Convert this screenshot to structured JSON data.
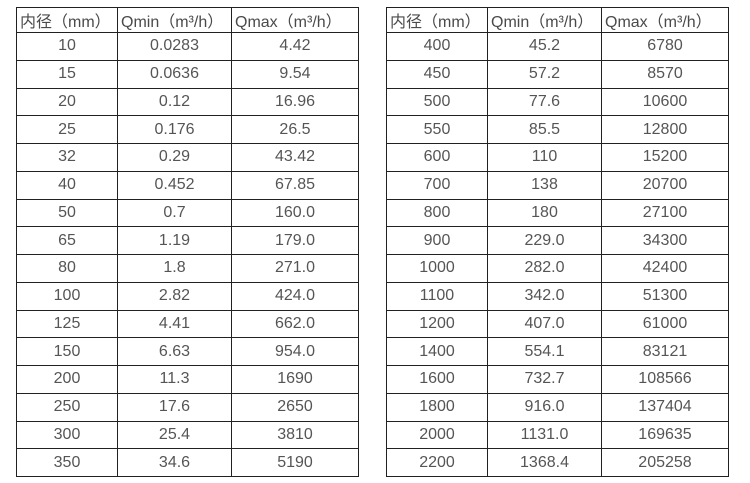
{
  "colors": {
    "border": "#212121",
    "text": "#555555",
    "header_text": "#4a4a4a",
    "background": "#ffffff"
  },
  "tables": [
    {
      "name": "flow-spec-table-small-diameters",
      "headers": [
        "内径（mm）",
        "Qmin（m³/h）",
        "Qmax（m³/h）"
      ],
      "rows": [
        [
          "10",
          "0.0283",
          "4.42"
        ],
        [
          "15",
          "0.0636",
          "9.54"
        ],
        [
          "20",
          "0.12",
          "16.96"
        ],
        [
          "25",
          "0.176",
          "26.5"
        ],
        [
          "32",
          "0.29",
          "43.42"
        ],
        [
          "40",
          "0.452",
          "67.85"
        ],
        [
          "50",
          "0.7",
          "160.0"
        ],
        [
          "65",
          "1.19",
          "179.0"
        ],
        [
          "80",
          "1.8",
          "271.0"
        ],
        [
          "100",
          "2.82",
          "424.0"
        ],
        [
          "125",
          "4.41",
          "662.0"
        ],
        [
          "150",
          "6.63",
          "954.0"
        ],
        [
          "200",
          "11.3",
          "1690"
        ],
        [
          "250",
          "17.6",
          "2650"
        ],
        [
          "300",
          "25.4",
          "3810"
        ],
        [
          "350",
          "34.6",
          "5190"
        ]
      ]
    },
    {
      "name": "flow-spec-table-large-diameters",
      "headers": [
        "内径（mm）",
        "Qmin（m³/h）",
        "Qmax（m³/h）"
      ],
      "rows": [
        [
          "400",
          "45.2",
          "6780"
        ],
        [
          "450",
          "57.2",
          "8570"
        ],
        [
          "500",
          "77.6",
          "10600"
        ],
        [
          "550",
          "85.5",
          "12800"
        ],
        [
          "600",
          "110",
          "15200"
        ],
        [
          "700",
          "138",
          "20700"
        ],
        [
          "800",
          "180",
          "27100"
        ],
        [
          "900",
          "229.0",
          "34300"
        ],
        [
          "1000",
          "282.0",
          "42400"
        ],
        [
          "1100",
          "342.0",
          "51300"
        ],
        [
          "1200",
          "407.0",
          "61000"
        ],
        [
          "1400",
          "554.1",
          "83121"
        ],
        [
          "1600",
          "732.7",
          "108566"
        ],
        [
          "1800",
          "916.0",
          "137404"
        ],
        [
          "2000",
          "1131.0",
          "169635"
        ],
        [
          "2200",
          "1368.4",
          "205258"
        ]
      ]
    }
  ]
}
